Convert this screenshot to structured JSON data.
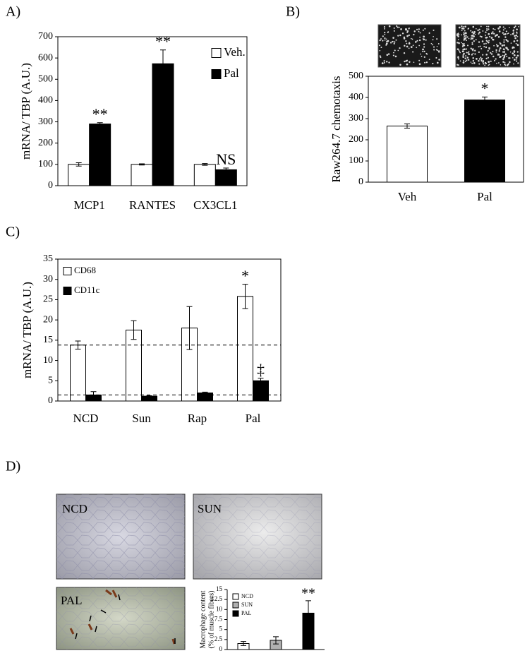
{
  "panel_labels": [
    "A)",
    "B)",
    "C)",
    "D)"
  ],
  "image_labels": [
    "NCD",
    "SUN",
    "PAL"
  ],
  "chart_data": [
    {
      "type": "bar",
      "ylabel": "mRNA/ TBP (A.U.)",
      "categories": [
        "MCP1",
        "RANTES",
        "CX3CL1"
      ],
      "series": [
        {
          "name": "Veh.",
          "color": "#ffffff",
          "values": [
            100,
            100,
            100
          ],
          "errors": [
            8,
            3,
            4
          ],
          "annotations": [
            null,
            null,
            null
          ]
        },
        {
          "name": "Pal",
          "color": "#000000",
          "values": [
            290,
            573,
            75
          ],
          "errors": [
            6,
            65,
            8
          ],
          "annotations": [
            "**",
            "**",
            "NS"
          ]
        }
      ],
      "ylim": [
        0,
        700
      ],
      "yticks": [
        0,
        100,
        200,
        300,
        400,
        500,
        600,
        700
      ],
      "legend": "upper right"
    },
    {
      "type": "bar",
      "ylabel": "Raw264.7 chemotaxis",
      "categories": [
        "Veh",
        "Pal"
      ],
      "values": [
        265,
        388
      ],
      "errors": [
        10,
        14
      ],
      "colors": [
        "#ffffff",
        "#000000"
      ],
      "annotations": [
        null,
        "*"
      ],
      "ylim": [
        0,
        500
      ],
      "yticks": [
        0,
        100,
        200,
        300,
        400,
        500
      ]
    },
    {
      "type": "bar",
      "ylabel": "mRNA/ TBP (A.U.)",
      "categories": [
        "NCD",
        "Sun",
        "Rap",
        "Pal"
      ],
      "series": [
        {
          "name": "CD68",
          "color": "#ffffff",
          "values": [
            13.8,
            17.5,
            18,
            25.8
          ],
          "errors": [
            1,
            2.3,
            5.3,
            3
          ],
          "annotations": [
            null,
            null,
            null,
            "*"
          ]
        },
        {
          "name": "CD11c",
          "color": "#000000",
          "values": [
            1.5,
            1.2,
            2,
            5
          ],
          "errors": [
            0.8,
            0.1,
            0.2,
            0.6
          ],
          "annotations": [
            null,
            null,
            null,
            "‡"
          ]
        }
      ],
      "ylim": [
        0,
        35
      ],
      "yticks": [
        0,
        5,
        10,
        15,
        20,
        25,
        30,
        35
      ],
      "legend": "upper left"
    },
    {
      "type": "bar",
      "ylabel": [
        "Macrophage content",
        "(% of muscle fibers)"
      ],
      "categories": [
        "NCD",
        "SUN",
        "PAL"
      ],
      "values": [
        1.5,
        2.3,
        9.1
      ],
      "errors": [
        0.5,
        0.9,
        3.1
      ],
      "colors": [
        "#ffffff",
        "#b0b0b0",
        "#000000"
      ],
      "annotations": [
        null,
        null,
        "**"
      ],
      "ylim": [
        0,
        15
      ],
      "yticks": [
        0,
        2.5,
        5,
        7.5,
        10,
        12.5,
        15
      ],
      "legend": "upper left"
    }
  ]
}
